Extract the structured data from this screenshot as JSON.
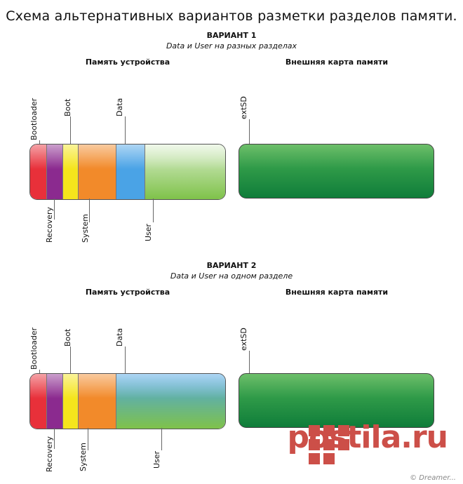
{
  "title": "Схема альтернативных вариантов разметки разделов памяти.",
  "variant1": {
    "heading": "ВАРИАНТ 1",
    "subtitle": "Data и User на разных разделах",
    "device_label": "Память устройства",
    "external_label": "Внешняя карта памяти",
    "partitions": [
      "Bootloader",
      "Recovery",
      "Boot",
      "System",
      "Data",
      "User"
    ],
    "external_partition": "extSD"
  },
  "variant2": {
    "heading": "ВАРИАНТ 2",
    "subtitle": "Data и User на одном разделе",
    "device_label": "Память устройства",
    "external_label": "Внешняя карта памяти",
    "partitions": [
      "Bootloader",
      "Recovery",
      "Boot",
      "System",
      "Data",
      "User"
    ],
    "external_partition": "extSD"
  },
  "colors": {
    "bootloader": "#e8303a",
    "recovery": "#8b2a8f",
    "boot": "#f5e51c",
    "system": "#f28a2a",
    "data": "#4aa3e6",
    "user": "#7fc24a",
    "external": "#1a8a3e"
  },
  "watermark": {
    "brand": "postila.ru",
    "copyright": "© Dreamer..."
  }
}
